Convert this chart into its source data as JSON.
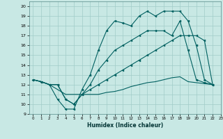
{
  "xlabel": "Humidex (Indice chaleur)",
  "xlim": [
    -0.5,
    23
  ],
  "ylim": [
    9,
    20.5
  ],
  "xticks": [
    0,
    1,
    2,
    3,
    4,
    5,
    6,
    7,
    8,
    9,
    10,
    11,
    12,
    13,
    14,
    15,
    16,
    17,
    18,
    19,
    20,
    21,
    22,
    23
  ],
  "yticks": [
    9,
    10,
    11,
    12,
    13,
    14,
    15,
    16,
    17,
    18,
    19,
    20
  ],
  "bg_color": "#c8e8e4",
  "grid_color": "#a0ccc8",
  "line_color": "#006060",
  "line1_x": [
    0,
    1,
    2,
    3,
    4,
    5,
    6,
    7,
    8,
    9,
    10,
    11,
    12,
    13,
    14,
    15,
    16,
    17,
    18,
    19,
    20,
    21,
    22
  ],
  "line1_y": [
    12.5,
    12.3,
    12.0,
    10.5,
    9.5,
    9.5,
    11.5,
    13.0,
    15.5,
    17.5,
    18.5,
    18.3,
    18.0,
    19.0,
    19.5,
    19.0,
    19.5,
    19.5,
    19.5,
    18.5,
    16.0,
    12.5,
    12.0
  ],
  "line2_x": [
    0,
    1,
    2,
    3,
    4,
    5,
    6,
    7,
    8,
    9,
    10,
    11,
    12,
    13,
    14,
    15,
    16,
    17,
    18,
    19,
    20,
    21,
    22
  ],
  "line2_y": [
    12.5,
    12.3,
    12.0,
    12.0,
    10.5,
    10.0,
    11.0,
    12.0,
    13.5,
    14.5,
    15.5,
    16.0,
    16.5,
    17.0,
    17.5,
    17.5,
    17.5,
    17.0,
    18.5,
    15.5,
    12.5,
    12.2,
    12.0
  ],
  "line3_x": [
    0,
    1,
    2,
    3,
    4,
    5,
    6,
    7,
    8,
    9,
    10,
    11,
    12,
    13,
    14,
    15,
    16,
    17,
    18,
    19,
    20,
    21,
    22
  ],
  "line3_y": [
    12.5,
    12.3,
    12.0,
    12.0,
    10.5,
    10.0,
    11.0,
    11.5,
    12.0,
    12.5,
    13.0,
    13.5,
    14.0,
    14.5,
    15.0,
    15.5,
    16.0,
    16.5,
    17.0,
    17.0,
    17.0,
    16.5,
    12.0
  ],
  "line4_x": [
    0,
    1,
    2,
    3,
    4,
    5,
    6,
    7,
    8,
    9,
    10,
    11,
    12,
    13,
    14,
    15,
    16,
    17,
    18,
    19,
    20,
    21,
    22
  ],
  "line4_y": [
    12.5,
    12.3,
    12.0,
    11.5,
    11.0,
    11.0,
    11.0,
    11.0,
    11.0,
    11.2,
    11.3,
    11.5,
    11.8,
    12.0,
    12.2,
    12.3,
    12.5,
    12.7,
    12.8,
    12.3,
    12.2,
    12.1,
    12.0
  ]
}
